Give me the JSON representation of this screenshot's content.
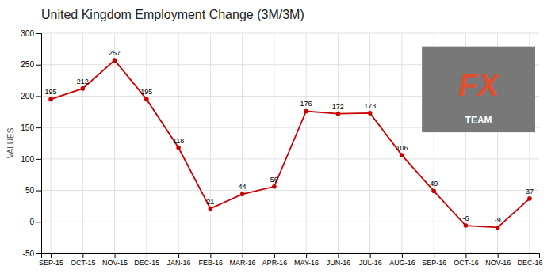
{
  "chart_data": {
    "type": "line",
    "title": "United Kingdom Employment Change (3M/3M)",
    "ylabel": "VALUES",
    "categories": [
      "SEP-15",
      "OCT-15",
      "NOV-15",
      "DEC-15",
      "JAN-16",
      "FEB-16",
      "MAR-16",
      "APR-16",
      "MAY-16",
      "JUN-16",
      "JUL-16",
      "AUG-16",
      "SEP-16",
      "OCT-16",
      "NOV-16",
      "DEC-16"
    ],
    "values": [
      195,
      212,
      257,
      195,
      118,
      21,
      44,
      56,
      176,
      172,
      173,
      106,
      49,
      -6,
      -9,
      37
    ],
    "color": "#cc0000",
    "marker": "circle",
    "ylim": [
      -50,
      300
    ],
    "yticks": [
      -50,
      0,
      50,
      100,
      150,
      200,
      250,
      300
    ],
    "grid": true,
    "data_labels": true,
    "annotations": [
      "FX",
      "TEAM"
    ]
  }
}
